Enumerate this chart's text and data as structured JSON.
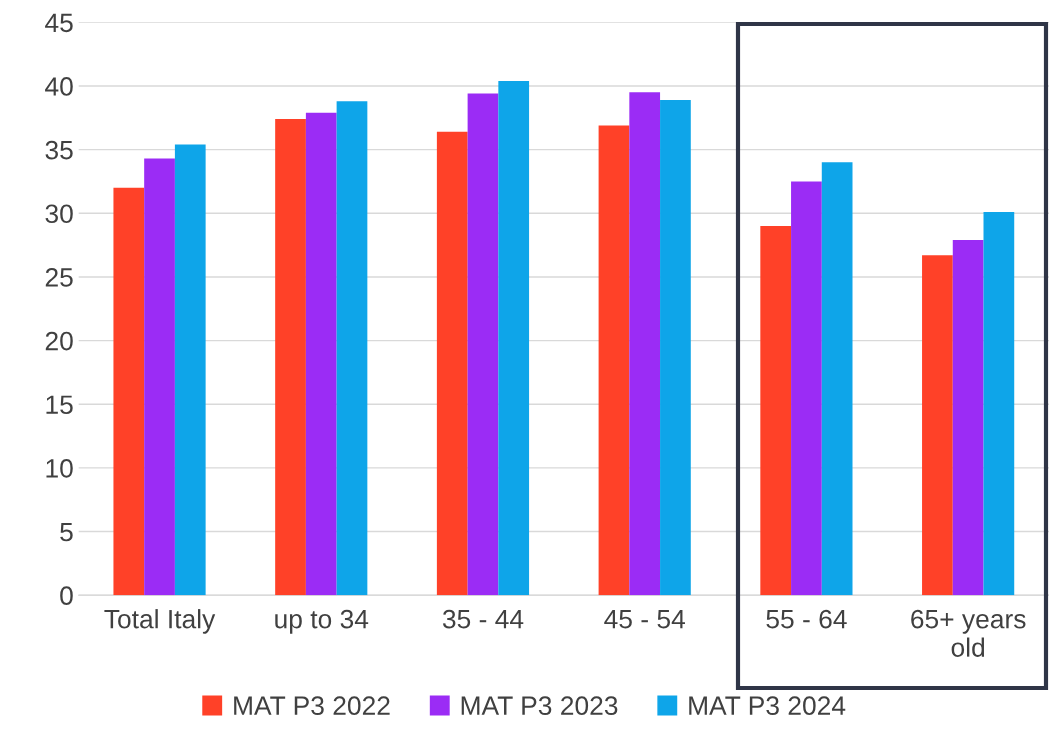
{
  "chart_data": {
    "type": "bar",
    "categories": [
      "Total Italy",
      "up to 34",
      "35 - 44",
      "45 - 54",
      "55 - 64",
      "65+ years\nold"
    ],
    "series": [
      {
        "name": "MAT P3 2022",
        "color": "#ff4128",
        "values": [
          32.0,
          37.4,
          36.4,
          36.9,
          29.0,
          26.7
        ]
      },
      {
        "name": "MAT P3 2023",
        "color": "#9b2cf5",
        "values": [
          34.3,
          37.9,
          39.4,
          39.5,
          32.5,
          27.9
        ]
      },
      {
        "name": "MAT P3 2024",
        "color": "#0ea5e9",
        "values": [
          35.4,
          38.8,
          40.4,
          38.9,
          34.0,
          30.1
        ]
      }
    ],
    "ylim": [
      0,
      45
    ],
    "yticks": [
      0,
      5,
      10,
      15,
      20,
      25,
      30,
      35,
      40,
      45
    ],
    "grid": "y",
    "legend": "bottom"
  }
}
